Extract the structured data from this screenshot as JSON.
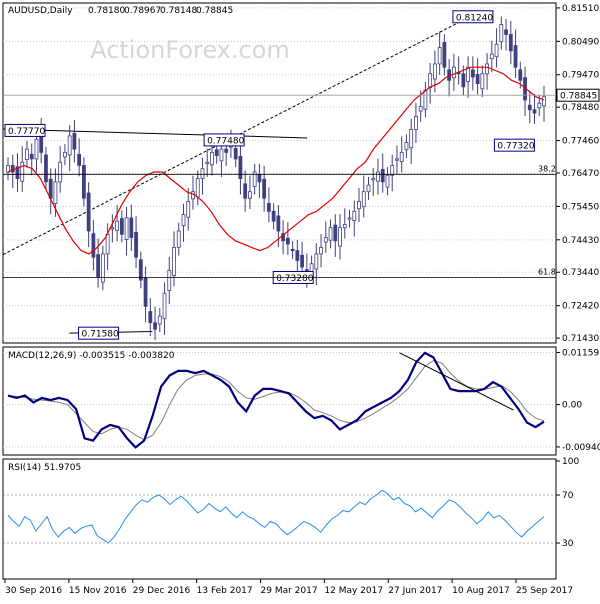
{
  "chart_data": [
    {
      "type": "candlestick",
      "panel": "price",
      "title": "AUDUSD,Daily",
      "ohlc_text": [
        "0.78180",
        "0.78967",
        "0.78148",
        "0.78845"
      ],
      "watermark": "ActionForex.com",
      "y_ticks": [
        "0.81510",
        "0.80490",
        "0.79470",
        "0.78480",
        "0.77460",
        "0.76470",
        "0.75450",
        "0.74430",
        "0.73440",
        "0.72420",
        "0.71430"
      ],
      "ylim": [
        0.7128,
        0.8166
      ],
      "current_price": "0.78845",
      "annotations": [
        {
          "label": "0.77770",
          "value": 0.7777
        },
        {
          "label": "0.77480",
          "value": 0.7748
        },
        {
          "label": "0.71580",
          "value": 0.7158
        },
        {
          "label": "0.73280",
          "value": 0.7328
        },
        {
          "label": "0.81240",
          "value": 0.8124
        },
        {
          "label": "0.77320",
          "value": 0.7732
        }
      ],
      "fib_levels": [
        {
          "label": "38.2",
          "value": 0.7643
        },
        {
          "label": "61.8",
          "value": 0.7328
        }
      ],
      "close_series": [
        0.767,
        0.765,
        0.763,
        0.768,
        0.772,
        0.769,
        0.775,
        0.771,
        0.762,
        0.757,
        0.762,
        0.768,
        0.771,
        0.776,
        0.772,
        0.767,
        0.757,
        0.747,
        0.739,
        0.733,
        0.74,
        0.746,
        0.748,
        0.75,
        0.746,
        0.751,
        0.745,
        0.739,
        0.732,
        0.724,
        0.719,
        0.717,
        0.721,
        0.728,
        0.735,
        0.742,
        0.747,
        0.752,
        0.756,
        0.759,
        0.763,
        0.766,
        0.768,
        0.771,
        0.77,
        0.772,
        0.771,
        0.773,
        0.769,
        0.763,
        0.757,
        0.759,
        0.765,
        0.762,
        0.757,
        0.753,
        0.75,
        0.747,
        0.744,
        0.743,
        0.741,
        0.738,
        0.736,
        0.733,
        0.737,
        0.74,
        0.742,
        0.745,
        0.748,
        0.744,
        0.748,
        0.749,
        0.751,
        0.753,
        0.756,
        0.759,
        0.761,
        0.763,
        0.765,
        0.762,
        0.764,
        0.767,
        0.769,
        0.771,
        0.774,
        0.778,
        0.782,
        0.785,
        0.79,
        0.795,
        0.798,
        0.803,
        0.797,
        0.793,
        0.797,
        0.795,
        0.791,
        0.797,
        0.794,
        0.792,
        0.795,
        0.798,
        0.801,
        0.804,
        0.81,
        0.807,
        0.802,
        0.797,
        0.793,
        0.787,
        0.784,
        0.783,
        0.786,
        0.788
      ],
      "ma_series": [
        0.765,
        0.766,
        0.767,
        0.766,
        0.763,
        0.758,
        0.753,
        0.748,
        0.744,
        0.741,
        0.74,
        0.742,
        0.745,
        0.75,
        0.755,
        0.759,
        0.762,
        0.764,
        0.765,
        0.765,
        0.763,
        0.761,
        0.759,
        0.758,
        0.756,
        0.753,
        0.749,
        0.746,
        0.744,
        0.743,
        0.742,
        0.741,
        0.742,
        0.744,
        0.746,
        0.748,
        0.75,
        0.752,
        0.753,
        0.755,
        0.757,
        0.76,
        0.763,
        0.766,
        0.768,
        0.772,
        0.775,
        0.778,
        0.781,
        0.784,
        0.787,
        0.789,
        0.791,
        0.792,
        0.794,
        0.795,
        0.796,
        0.797,
        0.797,
        0.797,
        0.796,
        0.795,
        0.793,
        0.792,
        0.79,
        0.788,
        0.787
      ],
      "lines": [
        {
          "name": "resistance",
          "style": "solid",
          "from": [
            0.0,
            0.7781
          ],
          "to": [
            0.55,
            0.7754
          ]
        },
        {
          "name": "support",
          "style": "solid",
          "from": [
            0.12,
            0.7158
          ],
          "to": [
            0.27,
            0.7163
          ]
        },
        {
          "name": "trend",
          "style": "dashed",
          "from": [
            0.0,
            0.7398
          ],
          "to": [
            0.833,
            0.8114
          ]
        }
      ]
    },
    {
      "type": "line",
      "panel": "macd",
      "title": "MACD(12,26,9) -0.003515 -0.003820",
      "y_ticks": [
        "0.01159",
        "0.00",
        "-0.009408"
      ],
      "ylim": [
        -0.0112,
        0.0128
      ],
      "series": [
        {
          "values": [
            0.002,
            0.0015,
            0.002,
            0.0005,
            0.0015,
            0.001,
            0.0015,
            0.001,
            -0.001,
            -0.0075,
            -0.008,
            -0.0055,
            -0.0045,
            -0.005,
            -0.0075,
            -0.0095,
            -0.008,
            -0.0025,
            0.004,
            0.0065,
            0.0075,
            0.0075,
            0.007,
            0.0075,
            0.0065,
            0.0055,
            0.004,
            0.0005,
            -0.0015,
            0.002,
            0.0035,
            0.0035,
            0.003,
            0.0025,
            0.0005,
            -0.0015,
            -0.003,
            -0.0025,
            -0.0035,
            -0.0055,
            -0.0045,
            -0.0035,
            -0.0015,
            -0.0005,
            0.0005,
            0.0015,
            0.003,
            0.0055,
            0.0095,
            0.0115,
            0.0105,
            0.007,
            0.0035,
            0.003,
            0.003,
            0.003,
            0.0035,
            0.005,
            0.004,
            0.0015,
            -0.001,
            -0.004,
            -0.005,
            -0.0038
          ]
        },
        {
          "values": [
            0.002,
            0.0018,
            0.0016,
            0.0012,
            0.001,
            0.0008,
            0.0005,
            0.0,
            -0.002,
            -0.004,
            -0.006,
            -0.0065,
            -0.0055,
            -0.005,
            -0.0055,
            -0.0068,
            -0.0078,
            -0.0068,
            -0.004,
            0.0,
            0.0035,
            0.0055,
            0.0065,
            0.0068,
            0.0068,
            0.0062,
            0.005,
            0.003,
            0.0015,
            0.0012,
            0.0018,
            0.0025,
            0.0028,
            0.0027,
            0.0018,
            0.0005,
            -0.0012,
            -0.0018,
            -0.0025,
            -0.0035,
            -0.004,
            -0.0038,
            -0.003,
            -0.002,
            -0.0008,
            0.0004,
            0.0018,
            0.0035,
            0.006,
            0.0085,
            0.0098,
            0.0092,
            0.007,
            0.0052,
            0.004,
            0.0035,
            0.0034,
            0.0038,
            0.0042,
            0.003,
            0.001,
            -0.0015,
            -0.003,
            -0.0036
          ]
        }
      ],
      "trend_line": {
        "style": "solid",
        "from": [
          0.717,
          0.0115
        ],
        "to": [
          0.923,
          -0.0012
        ]
      }
    },
    {
      "type": "line",
      "panel": "rsi",
      "title": "RSI(14) 51.9705",
      "y_ticks": [
        "100",
        "70",
        "30"
      ],
      "ylim": [
        0,
        100
      ],
      "levels": [
        70,
        30
      ],
      "series": [
        {
          "values": [
            53,
            48,
            44,
            52,
            49,
            40,
            46,
            52,
            41,
            35,
            40,
            43,
            38,
            42,
            44,
            45,
            36,
            33,
            30,
            35,
            42,
            50,
            56,
            62,
            66,
            64,
            68,
            70,
            67,
            62,
            66,
            69,
            65,
            60,
            55,
            58,
            63,
            59,
            56,
            60,
            55,
            51,
            56,
            52,
            50,
            46,
            43,
            48,
            46,
            41,
            37,
            40,
            44,
            48,
            46,
            43,
            39,
            45,
            50,
            53,
            57,
            56,
            60,
            64,
            62,
            67,
            70,
            74,
            71,
            66,
            68,
            63,
            61,
            56,
            59,
            55,
            51,
            57,
            61,
            66,
            64,
            60,
            55,
            51,
            46,
            50,
            56,
            51,
            53,
            49,
            44,
            39,
            35,
            40,
            44,
            48,
            52
          ]
        }
      ]
    }
  ],
  "x_axis": {
    "tick_labels": [
      "30 Sep 2016",
      "15 Nov 2016",
      "29 Dec 2016",
      "13 Feb 2017",
      "29 Mar 2017",
      "12 May 2017",
      "27 Jun 2017",
      "10 Aug 2017",
      "25 Sep 2017"
    ]
  },
  "colors": {
    "candle": "#404080",
    "ma": "#e00000",
    "macd": "#000080",
    "signal": "#808080",
    "rsi": "#2a8ee6",
    "grid": "#c8c8c8",
    "text": "#000000"
  }
}
